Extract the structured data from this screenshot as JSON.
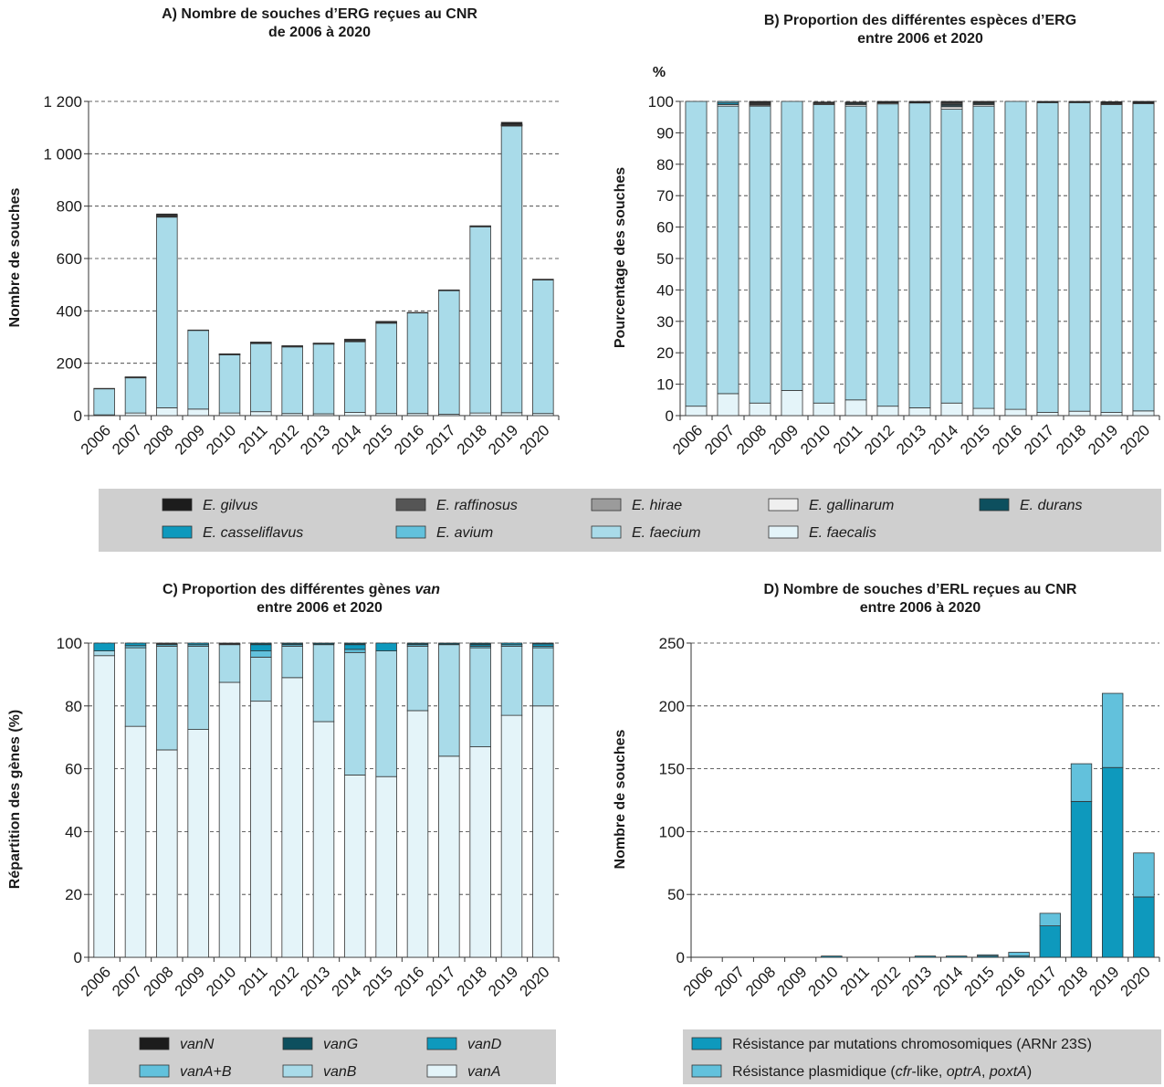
{
  "chart_data": [
    {
      "type": "bar",
      "stacked": true,
      "title": [
        "A) Nombre de souches d’ERG reçues au CNR",
        "de 2006 à 2020"
      ],
      "xlabel": "",
      "ylabel": "Nombre de souches",
      "ylim": [
        0,
        1200
      ],
      "yticks": [
        0,
        200,
        400,
        600,
        800,
        1000,
        1200
      ],
      "ytick_labels": [
        "0",
        "200",
        "400",
        "600",
        "800",
        "1 000",
        "1 200"
      ],
      "grid": true,
      "categories": [
        "2006",
        "2007",
        "2008",
        "2009",
        "2010",
        "2011",
        "2012",
        "2013",
        "2014",
        "2015",
        "2016",
        "2017",
        "2018",
        "2019",
        "2020"
      ],
      "series": [
        {
          "name": "E. faecalis",
          "color": "#e4f4f9",
          "values": [
            3,
            10,
            30,
            25,
            10,
            15,
            8,
            7,
            12,
            8,
            8,
            5,
            10,
            11,
            8
          ]
        },
        {
          "name": "E. faecium",
          "color": "#a9dbe9",
          "values": [
            100,
            135,
            728,
            301,
            223,
            260,
            255,
            266,
            270,
            345,
            385,
            473,
            711,
            1095,
            510
          ]
        },
        {
          "name": "E. gallinarum",
          "color": "#efefef",
          "values": [
            1,
            1,
            3,
            1,
            1,
            2,
            1,
            2,
            3,
            2,
            1,
            1,
            2,
            2,
            2
          ]
        },
        {
          "name": "E. casseliflavus",
          "color": "#0e99bd",
          "values": [
            0,
            1,
            1,
            0,
            0,
            1,
            1,
            1,
            1,
            1,
            0,
            0,
            0,
            1,
            0
          ]
        },
        {
          "name": "E. avium",
          "color": "#62c1dc",
          "values": [
            0,
            1,
            1,
            0,
            0,
            1,
            0,
            0,
            1,
            1,
            0,
            0,
            0,
            1,
            0
          ]
        },
        {
          "name": "E. durans",
          "color": "#0d4f5e",
          "values": [
            0,
            0,
            1,
            0,
            0,
            0,
            0,
            0,
            1,
            0,
            0,
            0,
            0,
            1,
            0
          ]
        },
        {
          "name": "E. hirae",
          "color": "#9b9b9b",
          "values": [
            0,
            0,
            1,
            0,
            0,
            0,
            0,
            0,
            1,
            0,
            0,
            0,
            0,
            1,
            0
          ]
        },
        {
          "name": "E. raffinosus",
          "color": "#555555",
          "values": [
            0,
            0,
            1,
            0,
            1,
            1,
            1,
            0,
            1,
            1,
            0,
            0,
            1,
            1,
            0
          ]
        },
        {
          "name": "E. gilvus",
          "color": "#1c1c1c",
          "values": [
            0,
            0,
            4,
            0,
            1,
            1,
            1,
            1,
            2,
            2,
            0,
            1,
            1,
            7,
            1
          ]
        }
      ]
    },
    {
      "type": "bar",
      "stacked": true,
      "title": [
        "B) Proportion des différentes espèces d’ERG",
        "entre 2006 et 2020"
      ],
      "xlabel": "",
      "ylabel": "Pourcentage des souches",
      "unit_label": "%",
      "ylim": [
        0,
        100
      ],
      "yticks": [
        0,
        10,
        20,
        30,
        40,
        50,
        60,
        70,
        80,
        90,
        100
      ],
      "ytick_labels": [
        "0",
        "10",
        "20",
        "30",
        "40",
        "50",
        "60",
        "70",
        "80",
        "90",
        "100"
      ],
      "grid": true,
      "categories": [
        "2006",
        "2007",
        "2008",
        "2009",
        "2010",
        "2011",
        "2012",
        "2013",
        "2014",
        "2015",
        "2016",
        "2017",
        "2018",
        "2019",
        "2020"
      ],
      "series": [
        {
          "name": "E. faecalis",
          "color": "#e4f4f9",
          "values": [
            3,
            7,
            4,
            8,
            4,
            5,
            3,
            2.5,
            4,
            2.3,
            2,
            1,
            1.4,
            1,
            1.5
          ]
        },
        {
          "name": "E. faecium",
          "color": "#a9dbe9",
          "values": [
            97,
            91.5,
            94.5,
            92,
            95,
            93.5,
            96.2,
            97,
            93.5,
            96.2,
            98,
            98.6,
            98.2,
            98,
            97.8
          ]
        },
        {
          "name": "E. gallinarum",
          "color": "#efefef",
          "values": [
            0,
            0.5,
            0.3,
            0,
            0.3,
            0.5,
            0.3,
            0,
            0.8,
            0.5,
            0,
            0,
            0,
            0.3,
            0.2
          ]
        },
        {
          "name": "E. casseliflavus",
          "color": "#0e99bd",
          "values": [
            0,
            0.5,
            0.2,
            0,
            0.2,
            0.3,
            0,
            0,
            0.3,
            0.3,
            0,
            0,
            0,
            0.1,
            0
          ]
        },
        {
          "name": "E. avium",
          "color": "#62c1dc",
          "values": [
            0,
            0.5,
            0.2,
            0,
            0,
            0.2,
            0,
            0,
            0.3,
            0.2,
            0,
            0,
            0,
            0.1,
            0
          ]
        },
        {
          "name": "E. durans",
          "color": "#0d4f5e",
          "values": [
            0,
            0,
            0.2,
            0,
            0,
            0,
            0,
            0,
            0.3,
            0,
            0,
            0,
            0,
            0,
            0
          ]
        },
        {
          "name": "E. hirae",
          "color": "#9b9b9b",
          "values": [
            0,
            0,
            0.1,
            0,
            0,
            0,
            0,
            0,
            0.3,
            0,
            0,
            0,
            0,
            0,
            0
          ]
        },
        {
          "name": "E. raffinosus",
          "color": "#555555",
          "values": [
            0,
            0,
            0.1,
            0,
            0,
            0,
            0,
            0,
            0.2,
            0.2,
            0,
            0,
            0,
            0,
            0
          ]
        },
        {
          "name": "E. gilvus",
          "color": "#1c1c1c",
          "values": [
            0,
            0,
            0.4,
            0,
            0.3,
            0.3,
            0.5,
            0.5,
            0.3,
            0.3,
            0,
            0.4,
            0.4,
            0.4,
            0.5
          ]
        }
      ]
    },
    {
      "type": "bar",
      "stacked": true,
      "title": [
        "C) Proportion des différentes gènes ",
        "van",
        "entre 2006 et 2020"
      ],
      "xlabel": "",
      "ylabel": "Répartition des gènes (%)",
      "ylim": [
        0,
        100
      ],
      "yticks": [
        0,
        20,
        40,
        60,
        80,
        100
      ],
      "ytick_labels": [
        "0",
        "20",
        "40",
        "60",
        "80",
        "100"
      ],
      "grid": true,
      "categories": [
        "2006",
        "2007",
        "2008",
        "2009",
        "2010",
        "2011",
        "2012",
        "2013",
        "2014",
        "2015",
        "2016",
        "2017",
        "2018",
        "2019",
        "2020"
      ],
      "series": [
        {
          "name": "vanA",
          "color": "#e4f4f9",
          "values": [
            96,
            73.5,
            66,
            72.5,
            87.5,
            81.5,
            89,
            75,
            58,
            57.5,
            78.5,
            64,
            67,
            77,
            80
          ]
        },
        {
          "name": "vanB",
          "color": "#a9dbe9",
          "values": [
            1.5,
            25,
            33,
            26.5,
            12,
            14,
            10,
            24.5,
            39,
            40,
            20.5,
            35.5,
            31.5,
            22,
            18.5
          ]
        },
        {
          "name": "vanA+B",
          "color": "#62c1dc",
          "values": [
            0,
            0.7,
            0.5,
            0.5,
            0.2,
            2,
            0.5,
            0,
            1,
            0,
            0.5,
            0,
            0.5,
            0.5,
            0.5
          ]
        },
        {
          "name": "vanD",
          "color": "#0e99bd",
          "values": [
            2.5,
            0.8,
            0,
            0.5,
            0,
            2,
            0,
            0,
            1.5,
            2.5,
            0,
            0,
            0.5,
            0.5,
            0.7
          ]
        },
        {
          "name": "vanG",
          "color": "#0d4f5e",
          "values": [
            0,
            0,
            0.3,
            0,
            0,
            0.5,
            0.5,
            0.5,
            0.5,
            0,
            0.5,
            0.5,
            0.5,
            0,
            0.3
          ]
        },
        {
          "name": "vanN",
          "color": "#1c1c1c",
          "values": [
            0,
            0,
            0.2,
            0,
            0.3,
            0,
            0,
            0,
            0,
            0,
            0,
            0,
            0,
            0,
            0
          ]
        }
      ]
    },
    {
      "type": "bar",
      "stacked": true,
      "title": [
        "D) Nombre de souches d’ERL reçues au CNR",
        "entre 2006 à 2020"
      ],
      "xlabel": "",
      "ylabel": "Nombre de souches",
      "ylim": [
        0,
        250
      ],
      "yticks": [
        0,
        50,
        100,
        150,
        200,
        250
      ],
      "ytick_labels": [
        "0",
        "50",
        "100",
        "150",
        "200",
        "250"
      ],
      "grid": true,
      "categories": [
        "2006",
        "2007",
        "2008",
        "2009",
        "2010",
        "2011",
        "2012",
        "2013",
        "2014",
        "2015",
        "2016",
        "2017",
        "2018",
        "2019",
        "2020"
      ],
      "series": [
        {
          "name": "Résistance par mutations chromosomiques (ARNr 23S)",
          "color": "#0e99bd",
          "values": [
            0,
            0,
            0,
            0,
            1,
            0,
            0,
            1,
            1,
            1,
            1,
            25,
            124,
            151,
            48
          ]
        },
        {
          "name": "Résistance plasmidique (cfr-like, optrA, poxtA)",
          "color": "#62c1dc",
          "values": [
            0,
            0,
            0,
            0,
            0,
            0,
            0,
            0,
            0,
            1,
            3,
            10,
            30,
            59,
            35
          ]
        }
      ]
    }
  ],
  "legends": {
    "species": [
      {
        "label": "E. gilvus",
        "color": "#1c1c1c"
      },
      {
        "label": "E. raffinosus",
        "color": "#555555"
      },
      {
        "label": "E. hirae",
        "color": "#9b9b9b"
      },
      {
        "label": "E. gallinarum",
        "color": "#efefef"
      },
      {
        "label": "E. durans",
        "color": "#0d4f5e"
      },
      {
        "label": "E. casseliflavus",
        "color": "#0e99bd"
      },
      {
        "label": "E. avium",
        "color": "#62c1dc"
      },
      {
        "label": "E. faecium",
        "color": "#a9dbe9"
      },
      {
        "label": "E. faecalis",
        "color": "#e4f4f9"
      }
    ],
    "genes": [
      {
        "label": "vanN",
        "color": "#1c1c1c"
      },
      {
        "label": "vanG",
        "color": "#0d4f5e"
      },
      {
        "label": "vanD",
        "color": "#0e99bd"
      },
      {
        "label": "vanA+B",
        "color": "#62c1dc"
      },
      {
        "label": "vanB",
        "color": "#a9dbe9"
      },
      {
        "label": "vanA",
        "color": "#e4f4f9"
      }
    ],
    "erl": [
      {
        "label": "Résistance par mutations chromosomiques (ARNr 23S)",
        "color": "#0e99bd",
        "parts": [
          {
            "t": "Résistance par mutations chromosomiques (ARNr 23S)",
            "i": false
          }
        ]
      },
      {
        "label": "Résistance plasmidique (cfr-like, optrA, poxtA)",
        "color": "#62c1dc",
        "parts": [
          {
            "t": "Résistance plasmidique (",
            "i": false
          },
          {
            "t": "cfr",
            "i": true
          },
          {
            "t": "-like, ",
            "i": false
          },
          {
            "t": "optrA",
            "i": true
          },
          {
            "t": ", ",
            "i": false
          },
          {
            "t": "poxtA",
            "i": true
          },
          {
            "t": ")",
            "i": false
          }
        ]
      }
    ]
  }
}
